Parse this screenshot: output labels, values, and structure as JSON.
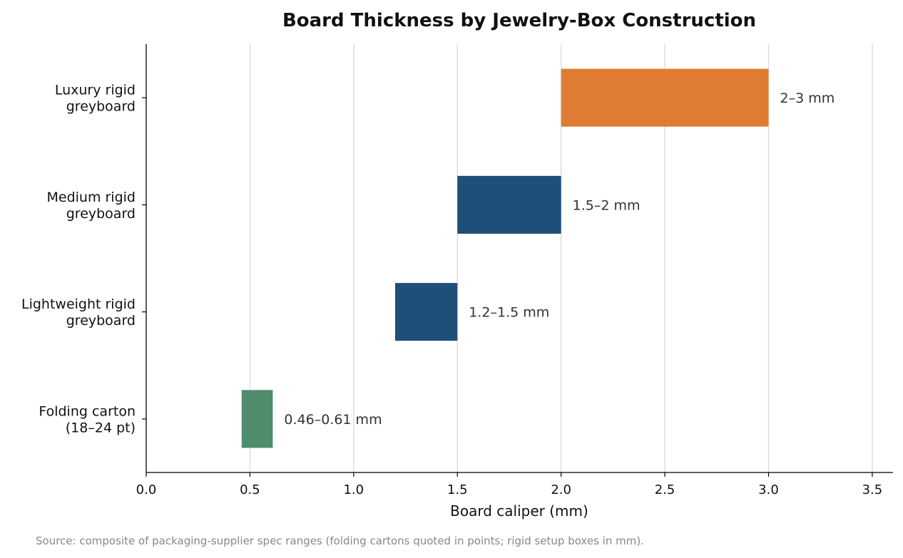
{
  "chart_data": {
    "type": "bar",
    "orientation": "horizontal",
    "subtype": "floating-range",
    "title": "Board Thickness by Jewelry-Box Construction",
    "xlabel": "Board caliper (mm)",
    "ylabel": "",
    "xlim": [
      0,
      3.6
    ],
    "xticks": [
      0,
      0.5,
      1,
      1.5,
      2,
      2.5,
      3,
      3.5
    ],
    "xtick_labels": [
      "0.0",
      "0.5",
      "1.0",
      "1.5",
      "2.0",
      "2.5",
      "3.0",
      "3.5"
    ],
    "grid": "vertical",
    "categories": [
      {
        "lines": [
          "Luxury rigid",
          "greyboard"
        ],
        "start": 2.0,
        "end": 3.0,
        "label": "2–3 mm",
        "color": "#E07B33"
      },
      {
        "lines": [
          "Medium rigid",
          "greyboard"
        ],
        "start": 1.5,
        "end": 2.0,
        "label": "1.5–2 mm",
        "color": "#1F4E79"
      },
      {
        "lines": [
          "Lightweight rigid",
          "greyboard"
        ],
        "start": 1.2,
        "end": 1.5,
        "label": "1.2–1.5 mm",
        "color": "#1F4E79"
      },
      {
        "lines": [
          "Folding carton",
          "(18–24 pt)"
        ],
        "start": 0.46,
        "end": 0.61,
        "label": "0.46–0.61 mm",
        "color": "#4E8C6C"
      }
    ],
    "source": "Source: composite of packaging-supplier spec ranges (folding cartons quoted in points; rigid setup boxes in mm)."
  }
}
